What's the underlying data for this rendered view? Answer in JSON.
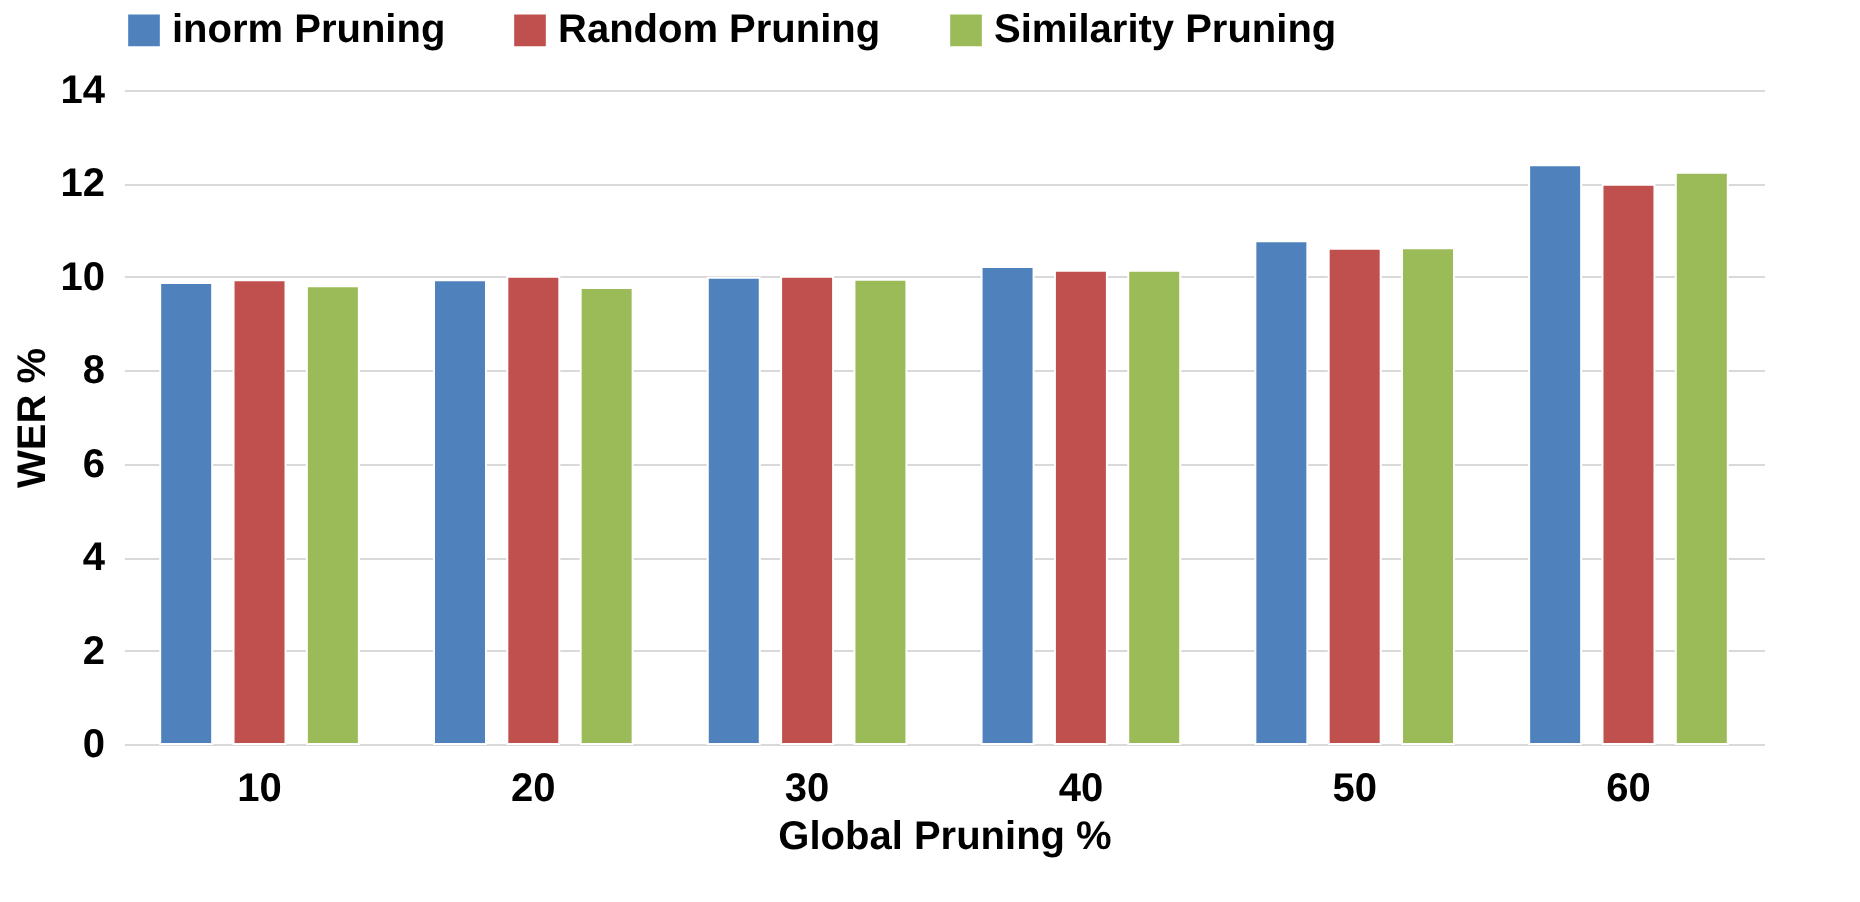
{
  "chart_data": {
    "type": "bar",
    "xlabel": "Global Pruning %",
    "ylabel": "WER %",
    "categories": [
      "10",
      "20",
      "30",
      "40",
      "50",
      "60"
    ],
    "series": [
      {
        "name": "inorm Pruning",
        "color": "#4f81bd",
        "values": [
          9.87,
          9.93,
          9.98,
          10.21,
          10.76,
          12.39
        ]
      },
      {
        "name": "Random Pruning",
        "color": "#c0504d",
        "values": [
          9.93,
          10.0,
          10.0,
          10.13,
          10.6,
          11.97
        ]
      },
      {
        "name": "Similarity Pruning",
        "color": "#9bbb59",
        "values": [
          9.8,
          9.76,
          9.94,
          10.13,
          10.61,
          12.23
        ]
      }
    ],
    "ylim": [
      0,
      14
    ],
    "yticks": [
      0,
      2,
      4,
      6,
      8,
      10,
      12,
      14
    ],
    "grid": "y",
    "legend": "top"
  }
}
